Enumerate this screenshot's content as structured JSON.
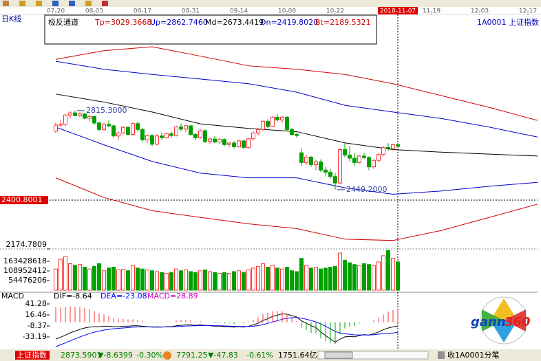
{
  "chart_data": [
    {
      "type": "candlestick",
      "title": "日K线",
      "indicator_name": "极反通道",
      "symbol": "1A0001 上证指数",
      "ylim": [
        2174.7809,
        3280
      ],
      "yticks": [
        2174.7809
      ],
      "price_line": 2400.8001,
      "xticks": [
        {
          "value": 0,
          "label": "07-20"
        },
        {
          "value": 8,
          "label": "08-03"
        },
        {
          "value": 18,
          "label": "08-17"
        },
        {
          "value": 28,
          "label": "08-31"
        },
        {
          "value": 38,
          "label": "09-14"
        },
        {
          "value": 48,
          "label": "10-08"
        },
        {
          "value": 58,
          "label": "10-22"
        },
        {
          "value": 78,
          "label": "11-19"
        },
        {
          "value": 88,
          "label": "12-03"
        },
        {
          "value": 98,
          "label": "12-17"
        }
      ],
      "cursor": {
        "value": 71,
        "label": "2018-11-07"
      },
      "up_color": "#ff3232",
      "down_color": "#00a000",
      "annotations": [
        {
          "index": 4,
          "value": 2815.3,
          "label": "2815.3000"
        },
        {
          "index": 58,
          "value": 2449.2,
          "label": "2449.2000"
        }
      ],
      "candles": [
        [
          2720,
          2760,
          2712,
          2748
        ],
        [
          2748,
          2770,
          2740,
          2752
        ],
        [
          2752,
          2800,
          2745,
          2795
        ],
        [
          2795,
          2812,
          2780,
          2805
        ],
        [
          2805,
          2815.3,
          2790,
          2792
        ],
        [
          2792,
          2808,
          2785,
          2800
        ],
        [
          2800,
          2805,
          2775,
          2780
        ],
        [
          2780,
          2795,
          2765,
          2788
        ],
        [
          2788,
          2792,
          2750,
          2758
        ],
        [
          2758,
          2765,
          2720,
          2728
        ],
        [
          2728,
          2760,
          2722,
          2752
        ],
        [
          2752,
          2770,
          2738,
          2745
        ],
        [
          2745,
          2750,
          2690,
          2698
        ],
        [
          2698,
          2720,
          2680,
          2712
        ],
        [
          2712,
          2745,
          2705,
          2738
        ],
        [
          2738,
          2742,
          2700,
          2705
        ],
        [
          2705,
          2760,
          2700,
          2755
        ],
        [
          2755,
          2765,
          2720,
          2728
        ],
        [
          2728,
          2735,
          2670,
          2680
        ],
        [
          2680,
          2705,
          2665,
          2700
        ],
        [
          2700,
          2705,
          2650,
          2660
        ],
        [
          2660,
          2705,
          2655,
          2698
        ],
        [
          2698,
          2715,
          2680,
          2690
        ],
        [
          2690,
          2712,
          2685,
          2708
        ],
        [
          2708,
          2718,
          2690,
          2700
        ],
        [
          2700,
          2745,
          2695,
          2740
        ],
        [
          2740,
          2755,
          2720,
          2730
        ],
        [
          2730,
          2750,
          2715,
          2745
        ],
        [
          2745,
          2748,
          2700,
          2705
        ],
        [
          2705,
          2712,
          2680,
          2690
        ],
        [
          2690,
          2730,
          2685,
          2722
        ],
        [
          2722,
          2728,
          2665,
          2672
        ],
        [
          2672,
          2690,
          2660,
          2684
        ],
        [
          2684,
          2698,
          2665,
          2670
        ],
        [
          2670,
          2690,
          2660,
          2682
        ],
        [
          2682,
          2688,
          2650,
          2658
        ],
        [
          2658,
          2672,
          2645,
          2665
        ],
        [
          2665,
          2675,
          2640,
          2648
        ],
        [
          2648,
          2680,
          2645,
          2675
        ],
        [
          2675,
          2680,
          2640,
          2645
        ],
        [
          2645,
          2690,
          2640,
          2685
        ],
        [
          2685,
          2720,
          2678,
          2712
        ],
        [
          2712,
          2735,
          2700,
          2728
        ],
        [
          2728,
          2770,
          2722,
          2765
        ],
        [
          2765,
          2775,
          2735,
          2742
        ],
        [
          2742,
          2790,
          2738,
          2785
        ],
        [
          2785,
          2800,
          2765,
          2772
        ],
        [
          2772,
          2790,
          2760,
          2785
        ],
        [
          2785,
          2790,
          2720,
          2728
        ],
        [
          2728,
          2735,
          2700,
          2705
        ],
        [
          2705,
          2712,
          2690,
          2700
        ],
        [
          2620,
          2640,
          2560,
          2575
        ],
        [
          2575,
          2610,
          2565,
          2600
        ],
        [
          2600,
          2605,
          2555,
          2565
        ],
        [
          2565,
          2585,
          2540,
          2578
        ],
        [
          2578,
          2590,
          2530,
          2540
        ],
        [
          2540,
          2555,
          2515,
          2530
        ],
        [
          2530,
          2545,
          2500,
          2510
        ],
        [
          2510,
          2525,
          2449.2,
          2480
        ],
        [
          2480,
          2640,
          2475,
          2635
        ],
        [
          2635,
          2670,
          2600,
          2610
        ],
        [
          2610,
          2650,
          2580,
          2595
        ],
        [
          2595,
          2620,
          2560,
          2575
        ],
        [
          2575,
          2610,
          2570,
          2605
        ],
        [
          2605,
          2620,
          2590,
          2598
        ],
        [
          2598,
          2605,
          2540,
          2555
        ],
        [
          2555,
          2590,
          2545,
          2585
        ],
        [
          2585,
          2620,
          2575,
          2612
        ],
        [
          2612,
          2650,
          2605,
          2645
        ],
        [
          2645,
          2665,
          2630,
          2640
        ],
        [
          2640,
          2662,
          2630,
          2658
        ],
        [
          2658,
          2665,
          2645,
          2650
        ]
      ],
      "channel_x": [
        0,
        10,
        20,
        30,
        40,
        50,
        60,
        70,
        80,
        90,
        100
      ],
      "series": [
        {
          "name": "Tp=3029.3668",
          "color": "#d00000",
          "values": [
            3053,
            3093,
            3111,
            3068,
            3023,
            3007,
            2983,
            2940,
            2885,
            2830,
            2770
          ]
        },
        {
          "name": "Up=2862.7460",
          "color": "#0000c8",
          "values": [
            3044,
            3007,
            2983,
            2962,
            2940,
            2901,
            2840,
            2809,
            2779,
            2739,
            2693
          ]
        },
        {
          "name": "Md=2673.4419",
          "color": "#000000",
          "values": [
            2892,
            2855,
            2809,
            2754,
            2733,
            2718,
            2666,
            2635,
            2623,
            2614,
            2605
          ]
        },
        {
          "name": "Dn=2419.8020",
          "color": "#0000c8",
          "values": [
            2739,
            2657,
            2580,
            2526,
            2504,
            2504,
            2458,
            2428,
            2443,
            2465,
            2483
          ]
        },
        {
          "name": "Bt=2189.5321",
          "color": "#d00000",
          "values": [
            2504,
            2413,
            2352,
            2321,
            2291,
            2269,
            2220,
            2214,
            2260,
            2321,
            2382
          ]
        }
      ]
    },
    {
      "type": "volume",
      "ylim": [
        0,
        233469480
      ],
      "yticks": [
        54476206,
        108952412,
        163428618
      ],
      "values": [
        120000000,
        175000000,
        190000000,
        150000000,
        140000000,
        145000000,
        130000000,
        120000000,
        135000000,
        150000000,
        110000000,
        125000000,
        130000000,
        115000000,
        118000000,
        110000000,
        140000000,
        125000000,
        120000000,
        115000000,
        110000000,
        105000000,
        100000000,
        95000000,
        100000000,
        120000000,
        110000000,
        115000000,
        105000000,
        100000000,
        110000000,
        115000000,
        105000000,
        100000000,
        95000000,
        100000000,
        95000000,
        105000000,
        110000000,
        100000000,
        115000000,
        125000000,
        135000000,
        150000000,
        130000000,
        140000000,
        125000000,
        120000000,
        130000000,
        110000000,
        105000000,
        180000000,
        140000000,
        125000000,
        130000000,
        120000000,
        125000000,
        130000000,
        135000000,
        210000000,
        170000000,
        155000000,
        145000000,
        140000000,
        150000000,
        145000000,
        140000000,
        160000000,
        195000000,
        225000000,
        180000000,
        160000000
      ]
    },
    {
      "type": "macd",
      "title": "MACD",
      "ylim": [
        -59.5,
        50.6
      ],
      "yticks": [
        41.28,
        16.46,
        -8.37,
        -33.19
      ],
      "up_color": "#ff3232",
      "down_color": "#00a000",
      "series": [
        {
          "name": "DIF=-8.64",
          "color": "#000000",
          "values": [
            -38,
            -34,
            -29,
            -24,
            -20,
            -16,
            -13,
            -11,
            -10,
            -10,
            -9,
            -9,
            -10,
            -10,
            -9,
            -9,
            -8,
            -8,
            -9,
            -10,
            -11,
            -11,
            -11,
            -10,
            -10,
            -8,
            -7,
            -6,
            -6,
            -7,
            -6,
            -7,
            -8,
            -9,
            -9,
            -10,
            -10,
            -11,
            -10,
            -11,
            -9,
            -6,
            -2,
            4,
            8,
            13,
            16,
            19,
            18,
            15,
            12,
            3,
            -2,
            -8,
            -12,
            -22,
            -30,
            -38,
            -45,
            -38,
            -33,
            -32,
            -33,
            -30,
            -28,
            -29,
            -26,
            -22,
            -17,
            -13,
            -10.5,
            -8.64
          ]
        },
        {
          "name": "DEA=-23.08",
          "color": "#0000ff",
          "values": [
            -55,
            -50.8,
            -46.4,
            -41.9,
            -37.5,
            -33.2,
            -29.2,
            -25.5,
            -22.4,
            -19.9,
            -17.7,
            -16,
            -14.8,
            -13.8,
            -12.9,
            -12.1,
            -11.3,
            -10.7,
            -10.3,
            -10.2,
            -10.4,
            -10.5,
            -10.6,
            -10.5,
            -10.4,
            -9.9,
            -9.3,
            -8.6,
            -8.1,
            -7.9,
            -7.5,
            -7.4,
            -7.5,
            -7.8,
            -8,
            -8.4,
            -8.7,
            -9.2,
            -9.4,
            -9.7,
            -9.6,
            -8.9,
            -7.5,
            -5.2,
            -2.6,
            0.5,
            3.6,
            6.7,
            9,
            10.2,
            10.6,
            9.1,
            6.9,
            3.9,
            0.7,
            -3.8,
            -9,
            -14.8,
            -20.8,
            -24.3,
            -26,
            -27.2,
            -28.4,
            -28.7,
            -28.6,
            -28.7,
            -28.2,
            -26.9,
            -25.5,
            -25,
            -24.2,
            -23.08
          ]
        },
        {
          "name": "MACD=28.89",
          "color": "#c000c0",
          "values": [
            34,
            33.6,
            34.8,
            35.8,
            35,
            34.4,
            32.4,
            29,
            24.8,
            19.8,
            17.4,
            14,
            9.6,
            7.6,
            7.8,
            6.2,
            6.6,
            5.4,
            2.6,
            0.4,
            -1.2,
            -1,
            -0.8,
            1,
            0.8,
            3.8,
            4.6,
            5.2,
            4.2,
            1.8,
            3,
            0.8,
            -1,
            -2.4,
            -2,
            -3.2,
            -2.6,
            -3.6,
            -1.2,
            -2.6,
            1.2,
            5.8,
            11,
            18.4,
            21.2,
            25,
            24.8,
            24.6,
            18,
            9.6,
            2.8,
            -12.2,
            -17.8,
            -23.8,
            -25.4,
            -36.4,
            -42,
            -46.4,
            -48.4,
            -27.4,
            -14,
            -9.6,
            -9.2,
            -2.6,
            1.2,
            -0.6,
            4.4,
            9.8,
            17,
            24,
            27.4,
            28.89
          ]
        }
      ]
    }
  ],
  "status_bar": {
    "index_name": "上证指数",
    "price": "2873.5901",
    "change": "▼-8.6399",
    "pct": "-0.30%",
    "price2": "7791.25",
    "change2": "▼-47.83",
    "pct2": "-0.61%",
    "amount": "1751.64亿",
    "tab": "收1A0001分笔"
  },
  "logo": {
    "word": "gann",
    "number": "360"
  }
}
